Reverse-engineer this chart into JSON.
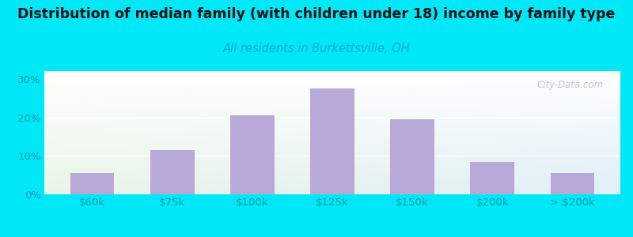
{
  "categories": [
    "$60k",
    "$75k",
    "$100k",
    "$125k",
    "$150k",
    "$200k",
    "> $200k"
  ],
  "values": [
    5.5,
    11.5,
    20.5,
    27.5,
    19.5,
    8.5,
    5.5
  ],
  "bar_color": "#b8a9d9",
  "title": "Distribution of median family (with children under 18) income by family type",
  "subtitle": "All residents in Burkettsville, OH",
  "title_fontsize": 12.5,
  "subtitle_fontsize": 10.5,
  "subtitle_color": "#00aacc",
  "title_color": "#111111",
  "ylabel_ticks": [
    "0%",
    "10%",
    "20%",
    "30%"
  ],
  "ytick_vals": [
    0,
    10,
    20,
    30
  ],
  "ylim": [
    0,
    32
  ],
  "background_outer": "#00e8f8",
  "background_inner_left": "#daf0d4",
  "background_inner_right": "#cce4f4",
  "grid_color": "#ffffff",
  "watermark": "City-Data.com",
  "tick_color": "#009aaa",
  "bar_width": 0.55
}
